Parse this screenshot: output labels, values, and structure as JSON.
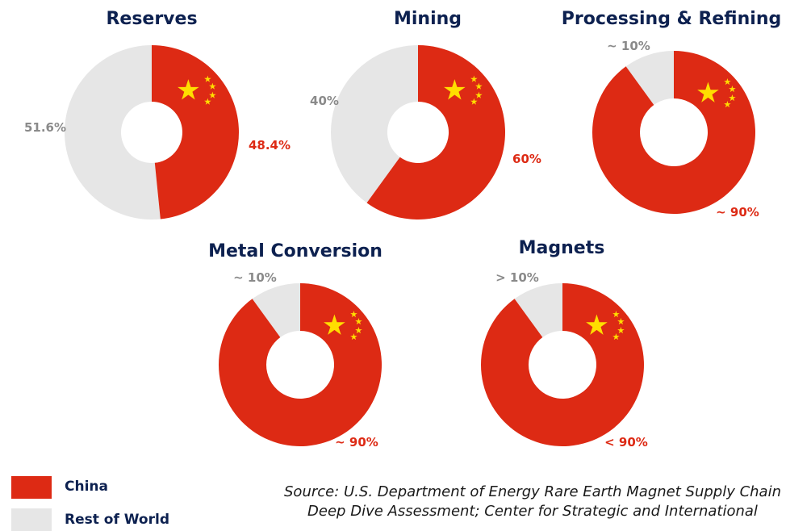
{
  "colors": {
    "china": "#dd2a14",
    "rest": "#e6e6e6",
    "star": "#ffde00",
    "title": "#0d2150",
    "rest_label": "#8a8a8a"
  },
  "chart_data": [
    {
      "type": "pie",
      "title": "Reserves",
      "labels": [
        "China",
        "Rest of World"
      ],
      "values": [
        48.4,
        51.6
      ],
      "value_labels": [
        "48.4%",
        "51.6%"
      ]
    },
    {
      "type": "pie",
      "title": "Mining",
      "labels": [
        "China",
        "Rest of World"
      ],
      "values": [
        60,
        40
      ],
      "value_labels": [
        "60%",
        "40%"
      ]
    },
    {
      "type": "pie",
      "title": "Processing & Refining",
      "labels": [
        "China",
        "Rest of World"
      ],
      "values": [
        90,
        10
      ],
      "value_labels": [
        "~ 90%",
        "~ 10%"
      ]
    },
    {
      "type": "pie",
      "title": "Metal Conversion",
      "labels": [
        "China",
        "Rest of World"
      ],
      "values": [
        90,
        10
      ],
      "value_labels": [
        "~ 90%",
        "~ 10%"
      ]
    },
    {
      "type": "pie",
      "title": "Magnets",
      "labels": [
        "China",
        "Rest of World"
      ],
      "values": [
        90,
        10
      ],
      "value_labels": [
        "< 90%",
        "> 10%"
      ]
    }
  ],
  "legend": [
    {
      "label": "China",
      "color": "#dd2a14"
    },
    {
      "label": "Rest of World",
      "color": "#e6e6e6"
    }
  ],
  "source": {
    "line1": "Source: U.S. Department of Energy Rare Earth Magnet Supply Chain",
    "line2": "Deep Dive Assessment; Center for Strategic and International"
  }
}
